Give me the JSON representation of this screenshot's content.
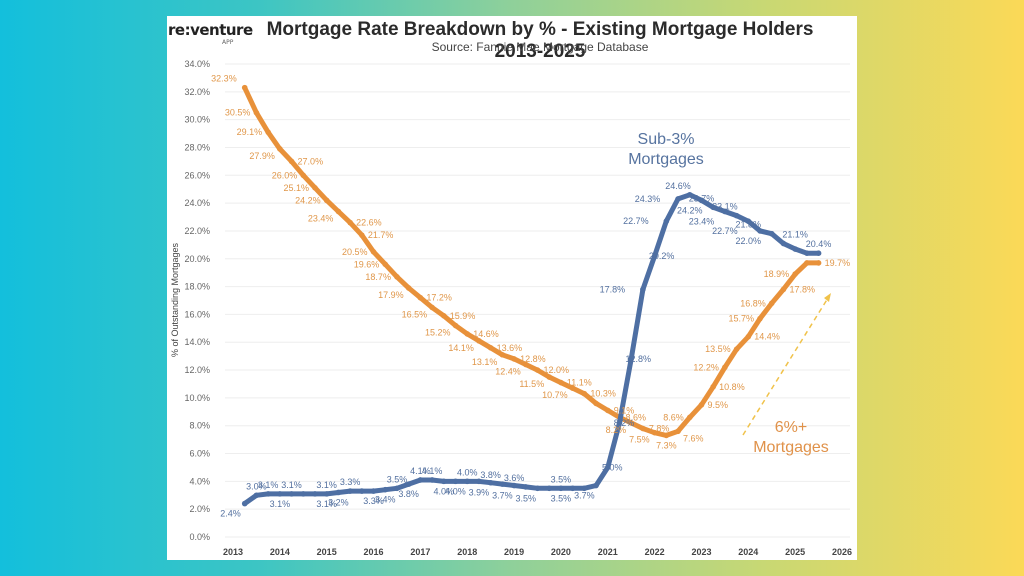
{
  "header": {
    "logo": "re:venture",
    "logo_sub": "APP",
    "title": "Mortgage Rate Breakdown by % - Existing Mortgage Holders 2013-2025",
    "subtitle": "Source: Fannie Mae Mortgage Database"
  },
  "chart_data": {
    "type": "line",
    "title": "Mortgage Rate Breakdown by % - Existing Mortgage Holders 2013-2025",
    "subtitle": "Source: Fannie Mae Mortgage Database",
    "xlabel": "",
    "ylabel": "% of Outstanding Mortgages",
    "xlim": [
      2013,
      2026
    ],
    "ylim": [
      0,
      34
    ],
    "grid": true,
    "x_ticks": [
      "2013",
      "2014",
      "2015",
      "2016",
      "2017",
      "2018",
      "2019",
      "2020",
      "2021",
      "2022",
      "2023",
      "2024",
      "2025",
      "2026"
    ],
    "y_ticks": [
      "0.0%",
      "2.0%",
      "4.0%",
      "6.0%",
      "8.0%",
      "10.0%",
      "12.0%",
      "14.0%",
      "16.0%",
      "18.0%",
      "20.0%",
      "22.0%",
      "24.0%",
      "26.0%",
      "28.0%",
      "30.0%",
      "32.0%",
      "34.0%"
    ],
    "series": [
      {
        "name": "6%+ Mortgages",
        "color": "#e8913a",
        "x": [
          2013.25,
          2013.5,
          2013.75,
          2014.0,
          2014.25,
          2014.5,
          2014.75,
          2015.0,
          2015.25,
          2015.5,
          2015.75,
          2016.0,
          2016.25,
          2016.5,
          2016.75,
          2017.0,
          2017.25,
          2017.5,
          2017.75,
          2018.0,
          2018.25,
          2018.5,
          2018.75,
          2019.0,
          2019.25,
          2019.5,
          2019.75,
          2020.0,
          2020.25,
          2020.5,
          2020.75,
          2021.0,
          2021.25,
          2021.5,
          2021.75,
          2022.0,
          2022.25,
          2022.5,
          2022.75,
          2023.0,
          2023.25,
          2023.5,
          2023.75,
          2024.0,
          2024.25,
          2024.5,
          2024.75,
          2025.0,
          2025.25,
          2025.5
        ],
        "values": [
          32.3,
          30.5,
          29.1,
          27.9,
          27.0,
          26.0,
          25.1,
          24.2,
          23.4,
          22.6,
          21.7,
          20.5,
          19.6,
          18.7,
          17.9,
          17.2,
          16.5,
          15.9,
          15.2,
          14.6,
          14.1,
          13.6,
          13.1,
          12.8,
          12.4,
          12.0,
          11.5,
          11.1,
          10.7,
          10.3,
          9.6,
          9.1,
          8.6,
          8.2,
          7.8,
          7.5,
          7.3,
          7.6,
          8.6,
          9.5,
          10.8,
          12.2,
          13.5,
          14.4,
          15.7,
          16.8,
          17.8,
          18.9,
          19.7,
          19.7
        ]
      },
      {
        "name": "Sub-3% Mortgages",
        "color": "#4e6fa3",
        "x": [
          2013.25,
          2013.5,
          2013.75,
          2014.0,
          2014.25,
          2014.5,
          2014.75,
          2015.0,
          2015.25,
          2015.5,
          2015.75,
          2016.0,
          2016.25,
          2016.5,
          2016.75,
          2017.0,
          2017.25,
          2017.5,
          2017.75,
          2018.0,
          2018.25,
          2018.5,
          2018.75,
          2019.0,
          2019.25,
          2019.5,
          2019.75,
          2020.0,
          2020.25,
          2020.5,
          2020.75,
          2021.0,
          2021.25,
          2021.5,
          2021.75,
          2022.0,
          2022.25,
          2022.5,
          2022.75,
          2023.0,
          2023.25,
          2023.5,
          2023.75,
          2024.0,
          2024.25,
          2024.5,
          2024.75,
          2025.0,
          2025.25,
          2025.5
        ],
        "values": [
          2.4,
          3.0,
          3.1,
          3.1,
          3.1,
          3.1,
          3.1,
          3.1,
          3.2,
          3.3,
          3.3,
          3.3,
          3.4,
          3.5,
          3.8,
          4.1,
          4.1,
          4.0,
          4.0,
          4.0,
          4.0,
          3.9,
          3.8,
          3.7,
          3.6,
          3.5,
          3.5,
          3.5,
          3.5,
          3.5,
          3.7,
          5.0,
          8.2,
          12.8,
          17.8,
          20.2,
          22.7,
          24.3,
          24.6,
          24.2,
          23.7,
          23.4,
          23.1,
          22.7,
          22.0,
          21.8,
          21.1,
          20.7,
          20.4,
          20.4
        ]
      }
    ],
    "data_labels": {
      "orange": [
        {
          "x": 2013.25,
          "text": "32.3%",
          "pos": "above-left"
        },
        {
          "x": 2013.5,
          "text": "30.5%",
          "pos": "left"
        },
        {
          "x": 2013.75,
          "text": "29.1%",
          "pos": "left"
        },
        {
          "x": 2014.0,
          "text": "27.9%",
          "pos": "left-below"
        },
        {
          "x": 2014.25,
          "text": "27.0%",
          "pos": "right"
        },
        {
          "x": 2014.5,
          "text": "26.0%",
          "pos": "left"
        },
        {
          "x": 2014.75,
          "text": "25.1%",
          "pos": "left"
        },
        {
          "x": 2015.0,
          "text": "24.2%",
          "pos": "left"
        },
        {
          "x": 2015.25,
          "text": "23.4%",
          "pos": "left-below"
        },
        {
          "x": 2015.5,
          "text": "22.6%",
          "pos": "right"
        },
        {
          "x": 2015.75,
          "text": "21.7%",
          "pos": "right"
        },
        {
          "x": 2016.0,
          "text": "20.5%",
          "pos": "left"
        },
        {
          "x": 2016.25,
          "text": "19.6%",
          "pos": "left"
        },
        {
          "x": 2016.5,
          "text": "18.7%",
          "pos": "left"
        },
        {
          "x": 2016.75,
          "text": "17.9%",
          "pos": "left-below"
        },
        {
          "x": 2017.0,
          "text": "17.2%",
          "pos": "right"
        },
        {
          "x": 2017.25,
          "text": "16.5%",
          "pos": "left-below"
        },
        {
          "x": 2017.5,
          "text": "15.9%",
          "pos": "right"
        },
        {
          "x": 2017.75,
          "text": "15.2%",
          "pos": "left-below"
        },
        {
          "x": 2018.0,
          "text": "14.6%",
          "pos": "right"
        },
        {
          "x": 2018.25,
          "text": "14.1%",
          "pos": "left-below"
        },
        {
          "x": 2018.5,
          "text": "13.6%",
          "pos": "right"
        },
        {
          "x": 2018.75,
          "text": "13.1%",
          "pos": "left-below"
        },
        {
          "x": 2019.0,
          "text": "12.8%",
          "pos": "right"
        },
        {
          "x": 2019.25,
          "text": "12.4%",
          "pos": "left-below"
        },
        {
          "x": 2019.5,
          "text": "12.0%",
          "pos": "right"
        },
        {
          "x": 2019.75,
          "text": "11.5%",
          "pos": "left-below"
        },
        {
          "x": 2020.0,
          "text": "11.1%",
          "pos": "right"
        },
        {
          "x": 2020.25,
          "text": "10.7%",
          "pos": "left-below"
        },
        {
          "x": 2020.5,
          "text": "10.3%",
          "pos": "right"
        },
        {
          "x": 2021.0,
          "text": "9.1%",
          "pos": "right"
        },
        {
          "x": 2021.25,
          "text": "8.6%",
          "pos": "right"
        },
        {
          "x": 2021.5,
          "text": "8.2%",
          "pos": "left-below"
        },
        {
          "x": 2021.75,
          "text": "7.8%",
          "pos": "right"
        },
        {
          "x": 2022.0,
          "text": "7.5%",
          "pos": "left-below"
        },
        {
          "x": 2022.25,
          "text": "7.3%",
          "pos": "below"
        },
        {
          "x": 2022.5,
          "text": "7.6%",
          "pos": "right-below"
        },
        {
          "x": 2022.75,
          "text": "8.6%",
          "pos": "left"
        },
        {
          "x": 2023.0,
          "text": "9.5%",
          "pos": "right"
        },
        {
          "x": 2023.25,
          "text": "10.8%",
          "pos": "right"
        },
        {
          "x": 2023.5,
          "text": "12.2%",
          "pos": "left"
        },
        {
          "x": 2023.75,
          "text": "13.5%",
          "pos": "left"
        },
        {
          "x": 2024.0,
          "text": "14.4%",
          "pos": "right"
        },
        {
          "x": 2024.25,
          "text": "15.7%",
          "pos": "left"
        },
        {
          "x": 2024.5,
          "text": "16.8%",
          "pos": "left"
        },
        {
          "x": 2024.75,
          "text": "17.8%",
          "pos": "right"
        },
        {
          "x": 2025.0,
          "text": "18.9%",
          "pos": "left"
        },
        {
          "x": 2025.5,
          "text": "19.7%",
          "pos": "right"
        }
      ],
      "blue": [
        {
          "x": 2013.25,
          "text": "2.4%",
          "pos": "below-left"
        },
        {
          "x": 2013.5,
          "text": "3.0%",
          "pos": "above"
        },
        {
          "x": 2013.75,
          "text": "3.1%",
          "pos": "above"
        },
        {
          "x": 2014.0,
          "text": "3.1%",
          "pos": "below"
        },
        {
          "x": 2014.25,
          "text": "3.1%",
          "pos": "above"
        },
        {
          "x": 2015.0,
          "text": "3.1%",
          "pos": "below"
        },
        {
          "x": 2015.0,
          "text": "3.1%",
          "pos": "above"
        },
        {
          "x": 2015.25,
          "text": "3.2%",
          "pos": "below"
        },
        {
          "x": 2015.5,
          "text": "3.3%",
          "pos": "above"
        },
        {
          "x": 2016.0,
          "text": "3.3%",
          "pos": "below"
        },
        {
          "x": 2016.25,
          "text": "3.4%",
          "pos": "below"
        },
        {
          "x": 2016.5,
          "text": "3.5%",
          "pos": "above"
        },
        {
          "x": 2016.75,
          "text": "3.8%",
          "pos": "below"
        },
        {
          "x": 2017.0,
          "text": "4.1%",
          "pos": "above"
        },
        {
          "x": 2017.25,
          "text": "4.1%",
          "pos": "above"
        },
        {
          "x": 2017.5,
          "text": "4.0%",
          "pos": "below"
        },
        {
          "x": 2017.75,
          "text": "4.0%",
          "pos": "below"
        },
        {
          "x": 2018.0,
          "text": "4.0%",
          "pos": "above"
        },
        {
          "x": 2018.25,
          "text": "3.9%",
          "pos": "below"
        },
        {
          "x": 2018.5,
          "text": "3.8%",
          "pos": "above"
        },
        {
          "x": 2018.75,
          "text": "3.7%",
          "pos": "below"
        },
        {
          "x": 2019.0,
          "text": "3.6%",
          "pos": "above"
        },
        {
          "x": 2019.25,
          "text": "3.5%",
          "pos": "below"
        },
        {
          "x": 2020.0,
          "text": "3.5%",
          "pos": "above"
        },
        {
          "x": 2020.0,
          "text": "3.5%",
          "pos": "below"
        },
        {
          "x": 2020.5,
          "text": "3.7%",
          "pos": "below"
        },
        {
          "x": 2020.75,
          "text": "5.0%",
          "pos": "right"
        },
        {
          "x": 2021.0,
          "text": "8.2%",
          "pos": "right"
        },
        {
          "x": 2021.25,
          "text": "12.8%",
          "pos": "right"
        },
        {
          "x": 2021.5,
          "text": "17.8%",
          "pos": "left"
        },
        {
          "x": 2021.75,
          "text": "20.2%",
          "pos": "right"
        },
        {
          "x": 2022.0,
          "text": "22.7%",
          "pos": "left"
        },
        {
          "x": 2022.25,
          "text": "24.3%",
          "pos": "left"
        },
        {
          "x": 2022.5,
          "text": "24.6%",
          "pos": "above"
        },
        {
          "x": 2022.75,
          "text": "24.2%",
          "pos": "below"
        },
        {
          "x": 2023.0,
          "text": "23.7%",
          "pos": "above"
        },
        {
          "x": 2023.0,
          "text": "23.4%",
          "pos": "below"
        },
        {
          "x": 2023.5,
          "text": "23.1%",
          "pos": "above"
        },
        {
          "x": 2023.5,
          "text": "22.7%",
          "pos": "below"
        },
        {
          "x": 2024.0,
          "text": "21.8%",
          "pos": "above"
        },
        {
          "x": 2024.0,
          "text": "22.0%",
          "pos": "below"
        },
        {
          "x": 2025.0,
          "text": "21.1%",
          "pos": "above"
        },
        {
          "x": 2025.5,
          "text": "20.4%",
          "pos": "above"
        }
      ]
    },
    "annotations": [
      {
        "text_lines": [
          "Sub-3%",
          "Mortgages"
        ],
        "series": "Sub-3% Mortgages"
      },
      {
        "text_lines": [
          "6%+",
          "Mortgages"
        ],
        "series": "6%+ Mortgages",
        "arrow": "dashed, pointing up-right"
      }
    ]
  }
}
